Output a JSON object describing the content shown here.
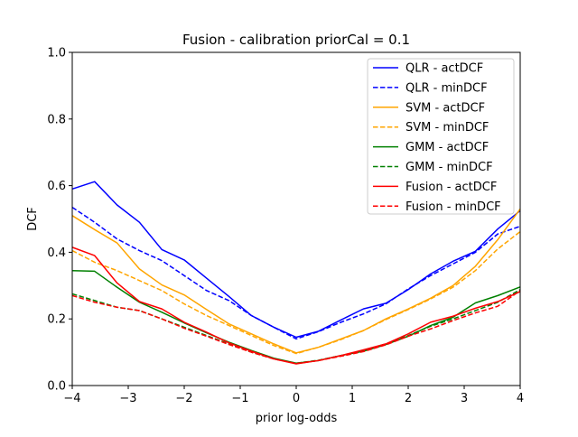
{
  "chart_data": {
    "type": "line",
    "title": "Fusion - calibration priorCal = 0.1",
    "xlabel": "prior log-odds",
    "ylabel": "DCF",
    "xlim": [
      -4,
      4
    ],
    "ylim": [
      0,
      1
    ],
    "xticks": [
      -4,
      -3,
      -2,
      -1,
      0,
      1,
      2,
      3,
      4
    ],
    "yticks": [
      0.0,
      0.2,
      0.4,
      0.6,
      0.8,
      1.0
    ],
    "xtick_labels": [
      "−4",
      "−3",
      "−2",
      "−1",
      "0",
      "1",
      "2",
      "3",
      "4"
    ],
    "ytick_labels": [
      "0.0",
      "0.2",
      "0.4",
      "0.6",
      "0.8",
      "1.0"
    ],
    "grid": false,
    "legend_position": "top-right",
    "x": [
      -4,
      -3.6,
      -3.2,
      -2.8,
      -2.4,
      -2,
      -1.6,
      -1.2,
      -0.8,
      -0.4,
      0,
      0.4,
      0.8,
      1.2,
      1.6,
      2,
      2.4,
      2.8,
      3.2,
      3.6,
      4
    ],
    "series": [
      {
        "name": " QLR - actDCF",
        "color": "#0000ff",
        "dash": "solid",
        "values": [
          0.59,
          0.612,
          0.542,
          0.49,
          0.408,
          0.377,
          0.322,
          0.267,
          0.21,
          0.175,
          0.145,
          0.163,
          0.197,
          0.23,
          0.247,
          0.288,
          0.335,
          0.373,
          0.403,
          0.47,
          0.525
        ]
      },
      {
        "name": "QLR - minDCF",
        "color": "#0000ff",
        "dash": "dashed",
        "values": [
          0.535,
          0.49,
          0.44,
          0.405,
          0.375,
          0.33,
          0.285,
          0.255,
          0.21,
          0.175,
          0.14,
          0.162,
          0.19,
          0.215,
          0.245,
          0.29,
          0.33,
          0.365,
          0.4,
          0.455,
          0.478
        ]
      },
      {
        "name": "SVM - actDCF",
        "color": "#ffa500",
        "dash": "solid",
        "values": [
          0.51,
          0.468,
          0.428,
          0.35,
          0.302,
          0.272,
          0.228,
          0.185,
          0.155,
          0.125,
          0.098,
          0.115,
          0.14,
          0.165,
          0.2,
          0.23,
          0.262,
          0.3,
          0.358,
          0.438,
          0.53
        ]
      },
      {
        "name": "SVM - minDCF",
        "color": "#ffa500",
        "dash": "dashed",
        "values": [
          0.405,
          0.37,
          0.345,
          0.315,
          0.285,
          0.245,
          0.21,
          0.18,
          0.15,
          0.12,
          0.096,
          0.115,
          0.138,
          0.165,
          0.198,
          0.228,
          0.26,
          0.295,
          0.345,
          0.41,
          0.462
        ]
      },
      {
        "name": "GMM - actDCF",
        "color": "#008000",
        "dash": "solid",
        "values": [
          0.345,
          0.343,
          0.295,
          0.25,
          0.22,
          0.188,
          0.158,
          0.13,
          0.105,
          0.082,
          0.067,
          0.075,
          0.09,
          0.103,
          0.123,
          0.148,
          0.18,
          0.205,
          0.248,
          0.27,
          0.296
        ]
      },
      {
        "name": "GMM - minDCF",
        "color": "#008000",
        "dash": "dashed",
        "values": [
          0.275,
          0.255,
          0.235,
          0.225,
          0.2,
          0.175,
          0.15,
          0.125,
          0.1,
          0.08,
          0.067,
          0.076,
          0.09,
          0.105,
          0.125,
          0.15,
          0.178,
          0.2,
          0.225,
          0.25,
          0.288
        ]
      },
      {
        "name": "Fusion - actDCF",
        "color": "#ff0000",
        "dash": "solid",
        "values": [
          0.415,
          0.39,
          0.308,
          0.252,
          0.23,
          0.19,
          0.16,
          0.128,
          0.103,
          0.08,
          0.065,
          0.075,
          0.09,
          0.107,
          0.125,
          0.155,
          0.19,
          0.208,
          0.232,
          0.252,
          0.282
        ]
      },
      {
        "name": "Fusion - minDCF",
        "color": "#ff0000",
        "dash": "dashed",
        "values": [
          0.27,
          0.25,
          0.235,
          0.225,
          0.2,
          0.172,
          0.148,
          0.123,
          0.1,
          0.08,
          0.066,
          0.075,
          0.088,
          0.102,
          0.122,
          0.148,
          0.17,
          0.195,
          0.218,
          0.238,
          0.285
        ]
      }
    ]
  }
}
